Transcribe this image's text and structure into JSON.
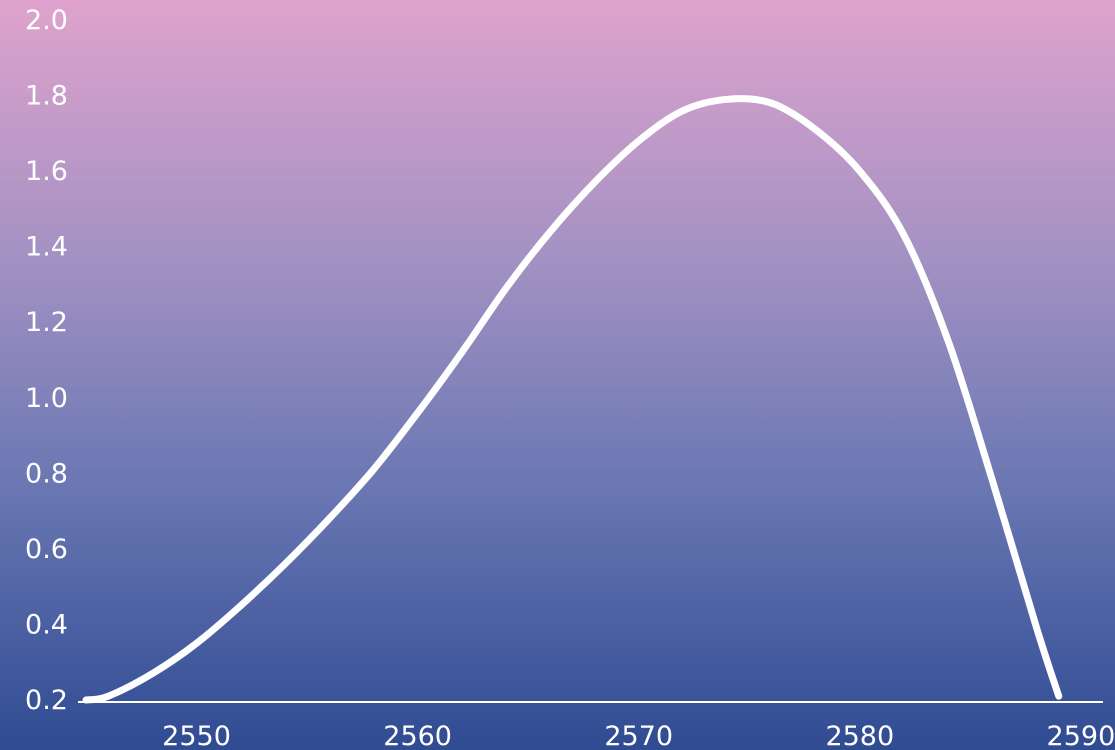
{
  "chart_data": {
    "type": "line",
    "title": "",
    "xlabel": "",
    "ylabel": "",
    "xlim": [
      2545,
      2591
    ],
    "ylim": [
      0.2,
      2.0
    ],
    "x_ticks": [
      "2550",
      "2560",
      "2570",
      "2580",
      "2590"
    ],
    "y_ticks": [
      "0.2",
      "0.4",
      "0.6",
      "0.8",
      "1.0",
      "1.2",
      "1.4",
      "1.6",
      "1.8",
      "2.0"
    ],
    "grid": false,
    "series": [
      {
        "x": [
          2545,
          2546,
          2548,
          2550,
          2552,
          2554,
          2556,
          2558,
          2560,
          2562,
          2564,
          2566,
          2568,
          2570,
          2572,
          2574,
          2576,
          2578,
          2580,
          2582,
          2584,
          2586,
          2588,
          2589
        ],
        "y": [
          0.2,
          0.21,
          0.27,
          0.35,
          0.45,
          0.56,
          0.68,
          0.81,
          0.96,
          1.12,
          1.29,
          1.44,
          1.57,
          1.68,
          1.76,
          1.79,
          1.78,
          1.71,
          1.6,
          1.43,
          1.15,
          0.78,
          0.39,
          0.21
        ]
      }
    ],
    "colors": {
      "line": "#ffffff",
      "axis": "#ffffff",
      "background_top": "#dfa3cd",
      "background_bottom": "#2f4b92"
    }
  }
}
